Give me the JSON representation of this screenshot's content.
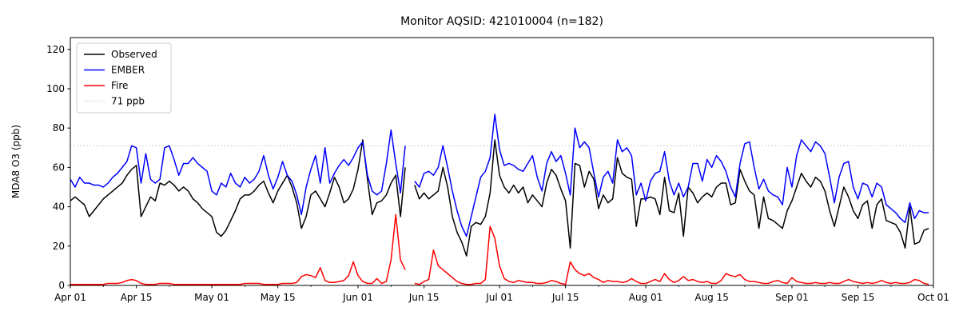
{
  "chart_data": {
    "type": "line",
    "title": "Monitor AQSID: 421010004 (n=182)",
    "ylabel": "MDA8 O3 (ppb)",
    "xlabel": "",
    "n_points": 182,
    "grid": false,
    "legend_position": "upper left",
    "x_days_total": 183,
    "x_start_label": "Apr 01",
    "x_tick_labels": [
      "Apr 01",
      "Apr 15",
      "May 01",
      "May 15",
      "Jun 01",
      "Jun 15",
      "Jul 01",
      "Jul 15",
      "Aug 01",
      "Aug 15",
      "Sep 01",
      "Sep 15",
      "Oct 01"
    ],
    "x_tick_day_index": [
      0,
      14,
      30,
      44,
      61,
      75,
      91,
      105,
      122,
      136,
      153,
      167,
      183
    ],
    "x_minor_tick_day_index": [
      7,
      21,
      37,
      51,
      68,
      82,
      98,
      112,
      129,
      143,
      160,
      174
    ],
    "y_ticks": [
      0,
      20,
      40,
      60,
      80,
      100,
      120
    ],
    "ylim": [
      0,
      126
    ],
    "threshold": {
      "value": 71,
      "label": "71 ppb",
      "color": "#d3d3d3"
    },
    "series": [
      {
        "name": "Observed",
        "color": "#000000",
        "values": [
          43,
          45,
          43,
          41,
          35,
          38,
          41,
          44,
          46,
          48,
          50,
          52,
          56,
          59,
          61,
          35,
          40,
          45,
          43,
          52,
          51,
          53,
          51,
          48,
          50,
          48,
          44,
          42,
          39,
          37,
          35,
          27,
          25,
          28,
          33,
          38,
          44,
          46,
          46,
          48,
          51,
          53,
          47,
          42,
          48,
          52,
          56,
          50,
          42,
          29,
          35,
          46,
          48,
          44,
          40,
          47,
          55,
          50,
          42,
          44,
          49,
          59,
          74,
          54,
          36,
          42,
          43,
          46,
          52,
          56,
          35,
          60,
          null,
          51,
          44,
          47,
          44,
          46,
          48,
          60,
          50,
          35,
          27,
          22,
          15,
          30,
          32,
          31,
          35,
          47,
          74,
          56,
          50,
          47,
          51,
          47,
          50,
          42,
          46,
          43,
          40,
          52,
          59,
          56,
          49,
          43,
          19,
          62,
          61,
          50,
          58,
          54,
          39,
          46,
          42,
          44,
          65,
          57,
          55,
          54,
          30,
          44,
          44,
          45,
          44,
          36,
          55,
          38,
          37,
          47,
          25,
          50,
          47,
          42,
          45,
          47,
          45,
          50,
          52,
          52,
          41,
          42,
          59,
          53,
          48,
          46,
          29,
          45,
          34,
          33,
          31,
          29,
          38,
          43,
          50,
          57,
          53,
          50,
          55,
          53,
          48,
          38,
          30,
          40,
          50,
          45,
          38,
          34,
          41,
          43,
          29,
          41,
          44,
          33,
          32,
          31,
          27,
          19,
          40,
          21,
          22,
          28,
          29
        ]
      },
      {
        "name": "EMBER",
        "color": "#0000ff",
        "values": [
          54,
          50,
          55,
          52,
          52,
          51,
          51,
          50,
          52,
          55,
          57,
          60,
          63,
          71,
          70,
          52,
          67,
          54,
          52,
          54,
          70,
          71,
          64,
          56,
          62,
          62,
          65,
          62,
          60,
          58,
          48,
          46,
          52,
          50,
          57,
          52,
          50,
          55,
          52,
          54,
          58,
          66,
          56,
          49,
          55,
          63,
          56,
          53,
          46,
          36,
          50,
          59,
          66,
          52,
          70,
          52,
          57,
          61,
          64,
          61,
          65,
          70,
          73,
          56,
          48,
          46,
          48,
          62,
          79,
          62,
          47,
          71,
          null,
          53,
          50,
          57,
          58,
          56,
          60,
          71,
          60,
          48,
          38,
          30,
          25,
          35,
          45,
          55,
          58,
          65,
          87,
          69,
          61,
          62,
          61,
          59,
          58,
          62,
          66,
          55,
          48,
          62,
          68,
          63,
          66,
          57,
          46,
          80,
          70,
          73,
          70,
          57,
          45,
          55,
          58,
          52,
          74,
          68,
          70,
          66,
          46,
          52,
          43,
          53,
          57,
          58,
          68,
          53,
          46,
          52,
          45,
          50,
          62,
          62,
          53,
          64,
          60,
          66,
          63,
          58,
          50,
          45,
          62,
          72,
          73,
          60,
          49,
          54,
          48,
          46,
          45,
          41,
          60,
          50,
          66,
          74,
          71,
          68,
          73,
          71,
          67,
          55,
          42,
          55,
          62,
          63,
          50,
          44,
          52,
          51,
          45,
          52,
          50,
          41,
          39,
          37,
          34,
          32,
          42,
          34,
          38,
          37,
          37
        ]
      },
      {
        "name": "Fire",
        "color": "#ff0000",
        "values": [
          0.5,
          0.5,
          0.5,
          0.5,
          0.5,
          0.5,
          0.5,
          0.5,
          1,
          1,
          1,
          1.5,
          2.5,
          3,
          2.5,
          1,
          0.5,
          0.5,
          0.5,
          1,
          1,
          1,
          0.5,
          0.5,
          0.5,
          0.5,
          0.5,
          0.5,
          0.5,
          0.5,
          0.5,
          0.5,
          0.5,
          0.5,
          0.5,
          0.5,
          0.5,
          1,
          1,
          1,
          1,
          0.5,
          0.5,
          0.5,
          0.5,
          1,
          1,
          1,
          1.5,
          4.5,
          5.5,
          5,
          4,
          9,
          2.5,
          1.5,
          1.5,
          2,
          2.5,
          5,
          12,
          5,
          2,
          1,
          1,
          3.5,
          1,
          2,
          13,
          36,
          13,
          8,
          null,
          1,
          0.5,
          2,
          3,
          18,
          10,
          8,
          6,
          4,
          2,
          1,
          0.5,
          0.5,
          1,
          1,
          3,
          30,
          24,
          10,
          3.5,
          2,
          1.5,
          2.5,
          2,
          1.5,
          1.5,
          1,
          1,
          1.5,
          2.5,
          2,
          1,
          0.5,
          12,
          8,
          6,
          5,
          6,
          4,
          3,
          1.5,
          2.5,
          2,
          2,
          1.5,
          2,
          3.5,
          2,
          1,
          1,
          2,
          3,
          2,
          6,
          3,
          1.5,
          2.5,
          4.5,
          2.5,
          3,
          2,
          1.5,
          2,
          1,
          1,
          2.5,
          6,
          5,
          4.5,
          5.5,
          3,
          2,
          2,
          1.5,
          1,
          1,
          2,
          2.5,
          1.5,
          1,
          4,
          2,
          1.5,
          1,
          1,
          1.5,
          1,
          1,
          1.5,
          1,
          1,
          2,
          3,
          2,
          1.5,
          1,
          1.5,
          1,
          1.5,
          2.5,
          1.5,
          1,
          1.5,
          1,
          1,
          1.5,
          3,
          2.5,
          1,
          0.5
        ]
      }
    ]
  }
}
